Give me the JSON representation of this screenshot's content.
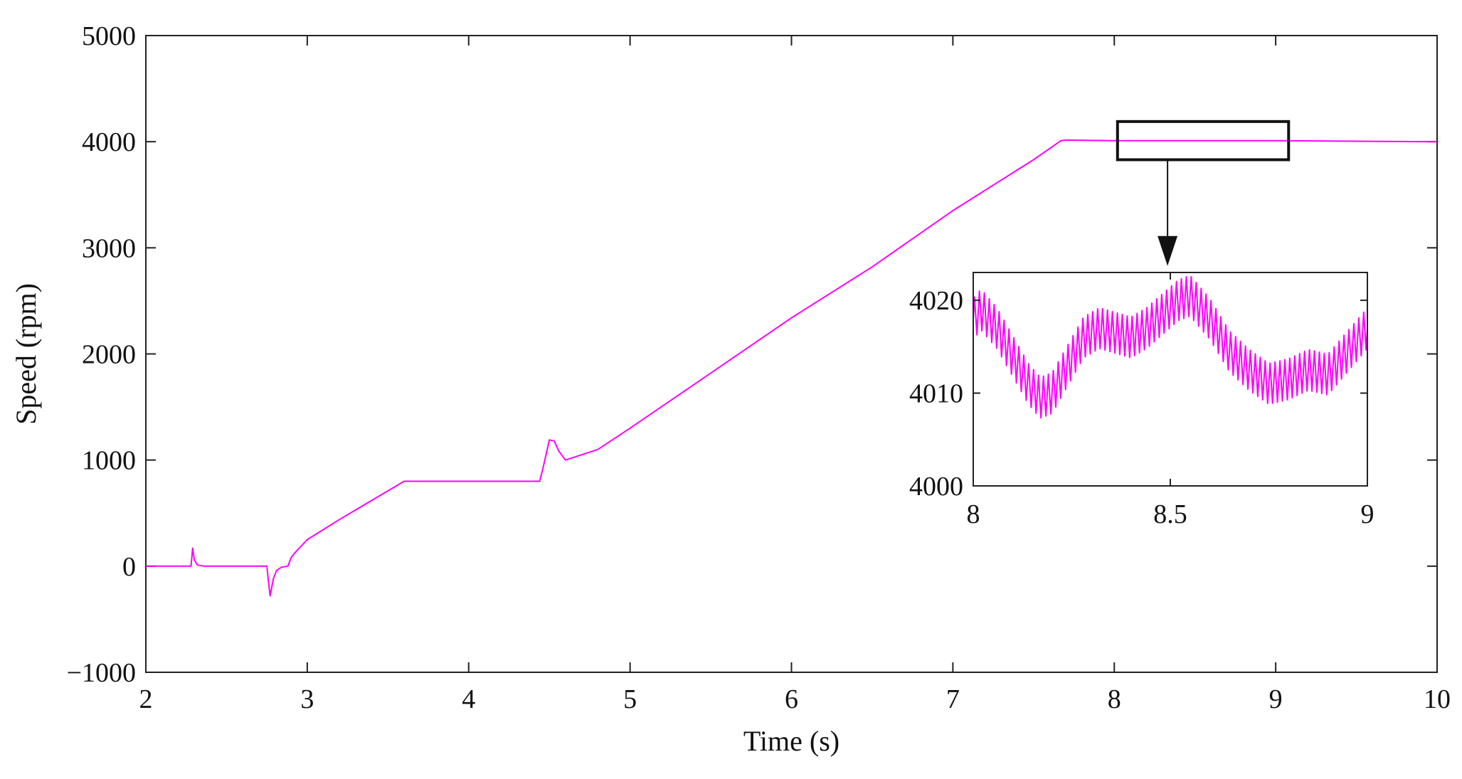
{
  "chart_data": [
    {
      "id": "main",
      "type": "line",
      "title": "",
      "xlabel": "Time (s)",
      "ylabel": "Speed (rpm)",
      "xlim": [
        2,
        10
      ],
      "ylim": [
        -1000,
        5000
      ],
      "xticks": [
        2,
        3,
        4,
        5,
        6,
        7,
        8,
        9,
        10
      ],
      "yticks": [
        -1000,
        0,
        1000,
        2000,
        3000,
        4000,
        5000
      ],
      "grid": false,
      "legend": "none",
      "series": [
        {
          "color": "#ff00ff",
          "x": [
            2.0,
            2.28,
            2.29,
            2.3,
            2.32,
            2.36,
            2.75,
            2.76,
            2.77,
            2.79,
            2.81,
            2.84,
            2.88,
            2.9,
            2.92,
            3.0,
            3.2,
            3.4,
            3.6,
            3.65,
            4.0,
            4.44,
            4.46,
            4.5,
            4.53,
            4.56,
            4.6,
            4.62,
            4.8,
            5.0,
            5.5,
            6.0,
            6.5,
            7.0,
            7.5,
            7.67,
            7.7,
            8.0,
            9.0,
            10.0
          ],
          "y": [
            0,
            0,
            170,
            60,
            10,
            0,
            0,
            -150,
            -280,
            -120,
            -40,
            -10,
            0,
            80,
            120,
            250,
            440,
            620,
            800,
            800,
            800,
            800,
            920,
            1190,
            1180,
            1080,
            1000,
            1010,
            1100,
            1300,
            1820,
            2340,
            2820,
            3350,
            3830,
            4010,
            4015,
            4010,
            4010,
            4000
          ]
        }
      ],
      "annotations": {
        "zoom_box": {
          "x": [
            8.02,
            9.08
          ],
          "y": [
            3830,
            4190
          ]
        },
        "arrow_from": [
          8.33,
          3830
        ],
        "arrow_to": [
          8.33,
          2830
        ]
      }
    },
    {
      "id": "inset",
      "type": "line",
      "title": "",
      "xlabel": "",
      "ylabel": "",
      "xlim": [
        8,
        9
      ],
      "ylim": [
        4000,
        4023
      ],
      "xticks": [
        8,
        8.5,
        9
      ],
      "xtick_labels": [
        "8",
        "8.5",
        "9"
      ],
      "yticks": [
        4000,
        4010,
        4020
      ],
      "grid": false,
      "legend": "none",
      "series": [
        {
          "color": "#ff00ff",
          "trend": {
            "x": [
              8.0,
              8.02,
              8.06,
              8.1,
              8.14,
              8.17,
              8.2,
              8.24,
              8.28,
              8.32,
              8.36,
              8.4,
              8.44,
              8.48,
              8.52,
              8.55,
              8.6,
              8.65,
              8.7,
              8.75,
              8.8,
              8.85,
              8.9,
              8.95,
              9.0
            ],
            "y": [
              4018,
              4019,
              4017,
              4014,
              4011,
              4009.5,
              4010,
              4013,
              4016,
              4017,
              4016.5,
              4016,
              4017,
              4018.5,
              4020,
              4020.5,
              4018,
              4014.5,
              4012.5,
              4011,
              4011.5,
              4012.5,
              4012,
              4014.5,
              4017
            ]
          },
          "ripple_amplitude": 2.2,
          "ripple_period": 0.0125
        }
      ]
    }
  ]
}
